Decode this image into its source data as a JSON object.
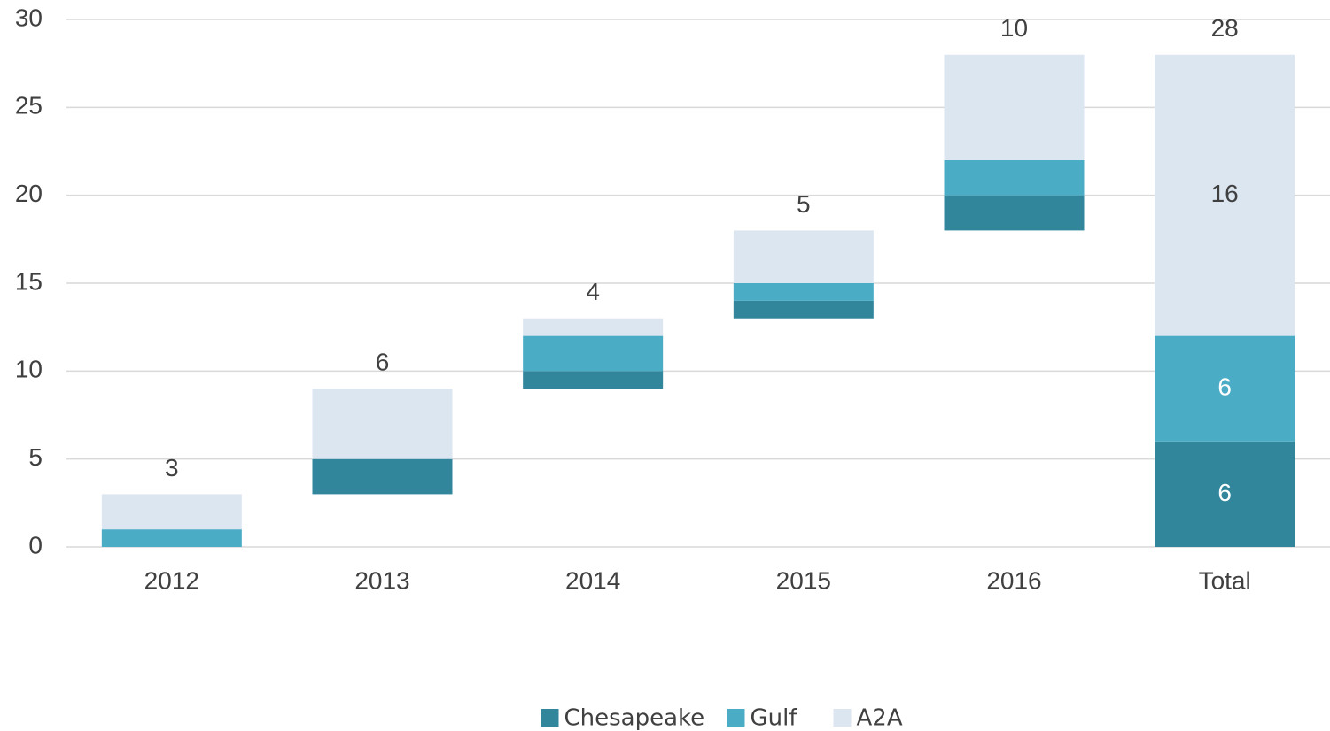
{
  "chart_data": {
    "type": "waterfall",
    "categories": [
      "2012",
      "2013",
      "2014",
      "2015",
      "2016",
      "Total"
    ],
    "series": [
      {
        "name": "Chesapeake",
        "color": "#31869b",
        "values": [
          0,
          2,
          1,
          1,
          2,
          6
        ]
      },
      {
        "name": "Gulf",
        "color": "#4bacc6",
        "values": [
          1,
          0,
          2,
          1,
          2,
          6
        ]
      },
      {
        "name": "A2A",
        "color": "#dce6f1",
        "values": [
          2,
          4,
          1,
          3,
          6,
          16
        ]
      }
    ],
    "totals": [
      3,
      6,
      4,
      5,
      10,
      28
    ],
    "ylim": [
      0,
      30
    ],
    "yticks": [
      0,
      5,
      10,
      15,
      20,
      25,
      30
    ],
    "grid": true,
    "legend": "bottom"
  }
}
